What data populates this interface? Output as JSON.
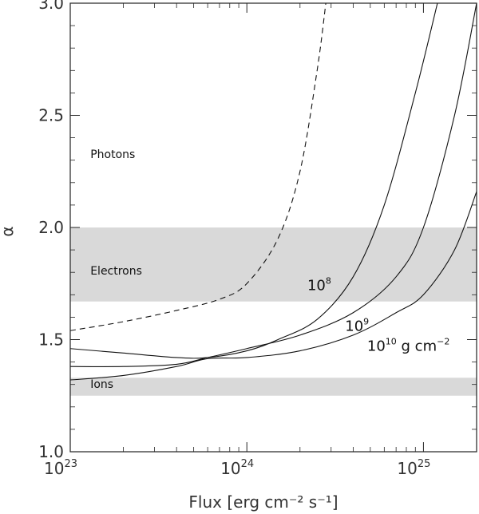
{
  "chart_data": {
    "type": "line",
    "xlabel": "Flux [erg cm⁻² s⁻¹]",
    "ylabel": "α",
    "x_scale": "log",
    "xlim": [
      1e+23,
      2e+25
    ],
    "ylim": [
      1.0,
      3.0
    ],
    "x_ticks": [
      {
        "value": 1e+23,
        "base": "10",
        "exp": "23"
      },
      {
        "value": 1e+24,
        "base": "10",
        "exp": "24"
      },
      {
        "value": 1e+25,
        "base": "10",
        "exp": "25"
      }
    ],
    "y_ticks": [
      "1.0",
      "1.5",
      "2.0",
      "2.5",
      "3.0"
    ],
    "bands": [
      {
        "label": "Electrons",
        "y": [
          1.67,
          2.0
        ],
        "color": "#d9d9d9"
      },
      {
        "label": "Ions",
        "y": [
          1.25,
          1.33
        ],
        "color": "#d9d9d9"
      }
    ],
    "band_labels": [
      {
        "text": "Photons",
        "x": 1.3e+23,
        "y": 2.31
      },
      {
        "text": "Electrons",
        "x": 1.3e+23,
        "y": 1.79
      },
      {
        "text": "Ions",
        "x": 1.3e+23,
        "y": 1.285
      }
    ],
    "series": [
      {
        "style": "dashed",
        "label": "",
        "x": [
          1e+23,
          2e+23,
          4e+23,
          7e+23,
          1e+24,
          1.5e+24,
          2e+24,
          2.5e+24,
          2.8e+24
        ],
        "y": [
          1.54,
          1.58,
          1.63,
          1.68,
          1.75,
          1.95,
          2.25,
          2.7,
          3.0
        ]
      },
      {
        "style": "solid",
        "label": "10⁸",
        "x": [
          1e+23,
          2e+23,
          4e+23,
          6e+23,
          1e+24,
          1.5e+24,
          2.5e+24,
          4e+24,
          6e+24,
          9e+24,
          1.2e+25
        ],
        "y": [
          1.46,
          1.44,
          1.42,
          1.42,
          1.45,
          1.5,
          1.59,
          1.78,
          2.1,
          2.6,
          3.0
        ]
      },
      {
        "style": "solid",
        "label": "10⁹",
        "x": [
          1e+23,
          2e+23,
          4e+23,
          6e+23,
          1e+24,
          2e+24,
          4e+24,
          7e+24,
          1e+25,
          1.5e+25,
          2e+25
        ],
        "y": [
          1.38,
          1.38,
          1.39,
          1.42,
          1.46,
          1.52,
          1.62,
          1.78,
          2.0,
          2.5,
          3.0
        ]
      },
      {
        "style": "solid",
        "label": "10¹⁰ g cm⁻²",
        "x": [
          1e+23,
          2e+23,
          4e+23,
          6e+23,
          1e+24,
          2e+24,
          4e+24,
          7e+24,
          1e+25,
          1.5e+25,
          2e+25
        ],
        "y": [
          1.32,
          1.34,
          1.38,
          1.415,
          1.42,
          1.45,
          1.52,
          1.62,
          1.7,
          1.9,
          2.16
        ]
      }
    ],
    "curve_labels": [
      {
        "base": "10",
        "exp": "8",
        "tail": "",
        "x": 2.2e+24,
        "y": 1.72
      },
      {
        "base": "10",
        "exp": "9",
        "tail": "",
        "x": 3.6e+24,
        "y": 1.54
      },
      {
        "base": "10",
        "exp": "10",
        "tail": " g cm",
        "tail_exp": "−2",
        "x": 4.8e+24,
        "y": 1.45
      }
    ],
    "grid": false
  }
}
